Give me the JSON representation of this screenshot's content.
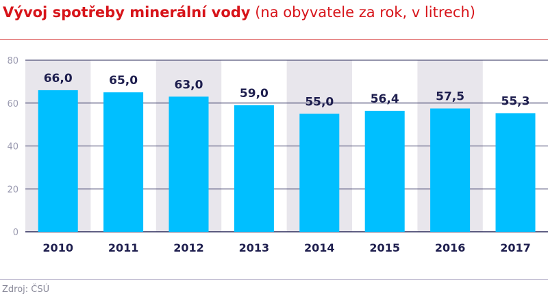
{
  "chart_data": {
    "type": "bar",
    "title": "Vývoj spotřeby minerální vody",
    "subtitle": "(na obyvatele za rok, v litrech)",
    "categories": [
      "2010",
      "2011",
      "2012",
      "2013",
      "2014",
      "2015",
      "2016",
      "2017"
    ],
    "values": [
      66.0,
      65.0,
      63.0,
      59.0,
      55.0,
      56.4,
      57.5,
      55.3
    ],
    "data_labels": [
      "66,0",
      "65,0",
      "63,0",
      "59,0",
      "55,0",
      "56,4",
      "57,5",
      "55,3"
    ],
    "ylim": [
      0,
      80
    ],
    "yticks": [
      0,
      20,
      40,
      60,
      80
    ],
    "grid": true,
    "xlabel": "",
    "ylabel": "",
    "source": "Zdroj: ČSÚ",
    "colors": {
      "bar": "#00bfff",
      "band": "#e8e6ec",
      "grid": "#2a2a5a",
      "title": "#d7141a",
      "label": "#1e1e4e"
    }
  }
}
